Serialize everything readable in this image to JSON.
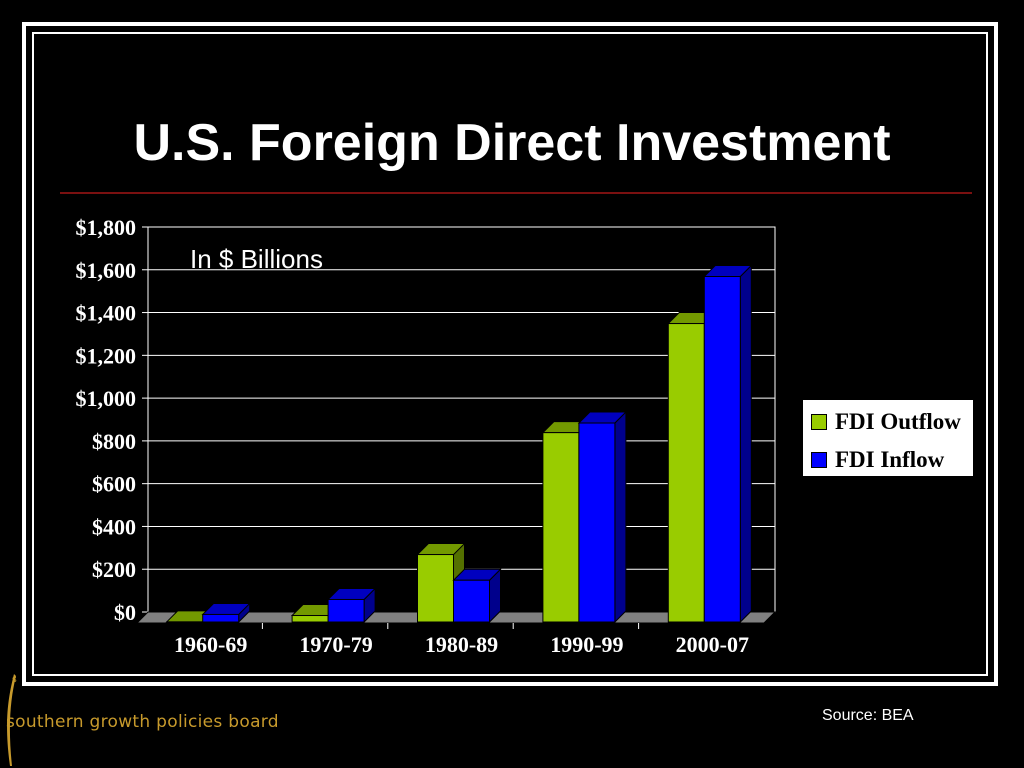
{
  "slide": {
    "title": "U.S. Foreign Direct Investment",
    "source": "Source: BEA",
    "logo_text": "southern growth policies board"
  },
  "colors": {
    "background": "#000000",
    "outflow": "#99cc00",
    "inflow": "#0000ff",
    "rule": "#7a1010",
    "logo": "#c79a2c"
  },
  "chart_data": {
    "type": "bar",
    "annotation": "In $ Billions",
    "categories": [
      "1960-69",
      "1970-79",
      "1980-89",
      "1990-99",
      "2000-07"
    ],
    "series": [
      {
        "name": "FDI Outflow",
        "values": [
          5,
          35,
          320,
          890,
          1400
        ]
      },
      {
        "name": "FDI Inflow",
        "values": [
          40,
          110,
          200,
          935,
          1620
        ]
      }
    ],
    "ylim": [
      0,
      1800
    ],
    "yticks": [
      0,
      200,
      400,
      600,
      800,
      1000,
      1200,
      1400,
      1600,
      1800
    ],
    "ytick_labels": [
      "$0",
      "$200",
      "$400",
      "$600",
      "$800",
      "$1,000",
      "$1,200",
      "$1,400",
      "$1,600",
      "$1,800"
    ],
    "grid": true,
    "legend_position": "right",
    "three_d": true
  }
}
